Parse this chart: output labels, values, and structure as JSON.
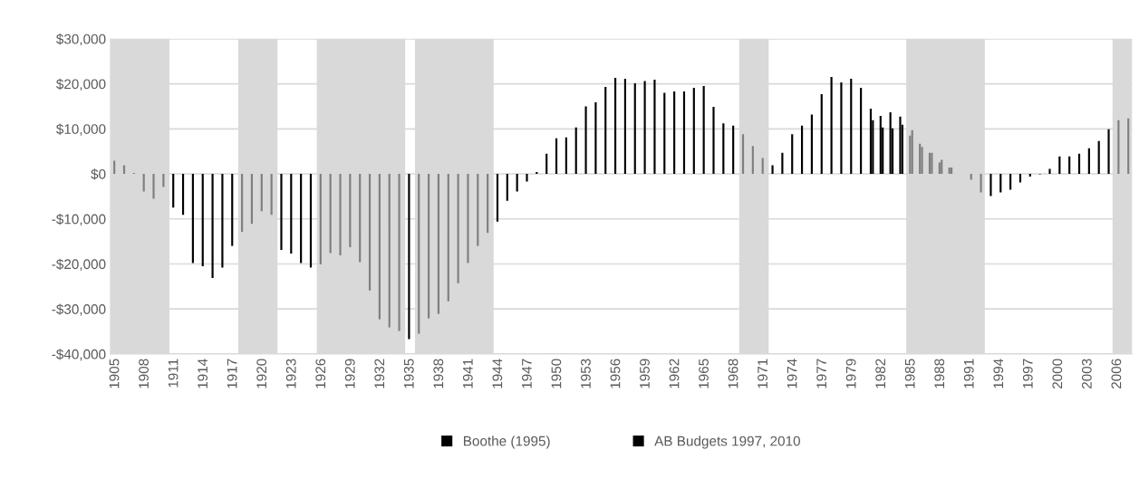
{
  "chart_data": {
    "type": "bar",
    "categories": [
      "1905",
      null,
      null,
      "1908",
      null,
      null,
      "1911",
      null,
      null,
      "1914",
      null,
      null,
      "1917",
      null,
      null,
      "1920",
      null,
      null,
      "1923",
      null,
      null,
      "1926",
      null,
      null,
      "1929",
      null,
      null,
      "1932",
      null,
      null,
      "1935",
      null,
      null,
      "1938",
      null,
      null,
      "1941",
      null,
      null,
      "1944",
      null,
      null,
      "1947",
      null,
      null,
      "1950",
      null,
      null,
      "1953",
      null,
      null,
      "1956",
      null,
      null,
      "1959",
      null,
      null,
      "1962",
      null,
      null,
      "1965",
      null,
      null,
      "1968",
      null,
      null,
      "1971",
      null,
      null,
      "1974",
      null,
      null,
      "1977",
      null,
      null,
      "1979",
      null,
      null,
      "1982",
      null,
      null,
      "1985",
      null,
      null,
      "1988",
      null,
      null,
      "1991",
      null,
      null,
      "1994",
      null,
      null,
      "1997",
      null,
      null,
      "2000",
      null,
      null,
      "2003",
      null,
      null,
      "2006",
      null
    ],
    "series": [
      {
        "name": "Boothe (1995)",
        "color": "#000000",
        "values": [
          2900,
          1900,
          200,
          -3900,
          -5500,
          -2900,
          -7500,
          -9100,
          -19800,
          -20500,
          -23100,
          -20800,
          -16000,
          -12900,
          -11100,
          -8300,
          -9100,
          -16900,
          -17700,
          -19800,
          -20800,
          -20100,
          -17600,
          -18100,
          -16300,
          -19600,
          -25900,
          -32300,
          -34100,
          -34900,
          -36700,
          -35500,
          -32100,
          -31100,
          -28300,
          -24300,
          -19800,
          -16000,
          -13100,
          -10600,
          -6000,
          -3900,
          -1700,
          400,
          4500,
          7900,
          8100,
          10300,
          15000,
          15900,
          19300,
          21300,
          21100,
          20100,
          20600,
          20900,
          18000,
          18300,
          18300,
          19100,
          19500,
          14900,
          11200,
          10700,
          8800,
          6200,
          3500,
          1900,
          4700,
          8800,
          10700,
          13200,
          17700,
          21500,
          20300,
          21100,
          19100,
          14500,
          12900,
          13700,
          12700,
          8500,
          6700,
          4700,
          2500,
          1400,
          null,
          null,
          null,
          null,
          null,
          null,
          null,
          null,
          null,
          null,
          null,
          null,
          null,
          null,
          null,
          null,
          null,
          null
        ],
        "colors": [
          "#7f7f7f",
          "#7f7f7f",
          "#7f7f7f",
          "#7f7f7f",
          "#7f7f7f",
          "#7f7f7f",
          "#000000",
          "#000000",
          "#000000",
          "#000000",
          "#000000",
          "#000000",
          "#000000",
          "#7f7f7f",
          "#7f7f7f",
          "#7f7f7f",
          "#7f7f7f",
          "#000000",
          "#000000",
          "#000000",
          "#000000",
          "#7f7f7f",
          "#7f7f7f",
          "#7f7f7f",
          "#7f7f7f",
          "#7f7f7f",
          "#7f7f7f",
          "#7f7f7f",
          "#7f7f7f",
          "#7f7f7f",
          "#000000",
          "#7f7f7f",
          "#7f7f7f",
          "#7f7f7f",
          "#7f7f7f",
          "#7f7f7f",
          "#7f7f7f",
          "#7f7f7f",
          "#7f7f7f",
          "#000000",
          "#000000",
          "#000000",
          "#000000",
          "#000000",
          "#000000",
          "#000000",
          "#000000",
          "#000000",
          "#000000",
          "#000000",
          "#000000",
          "#000000",
          "#000000",
          "#000000",
          "#000000",
          "#000000",
          "#000000",
          "#000000",
          "#000000",
          "#000000",
          "#000000",
          "#000000",
          "#000000",
          "#000000",
          "#7f7f7f",
          "#7f7f7f",
          "#7f7f7f",
          "#000000",
          "#000000",
          "#000000",
          "#000000",
          "#000000",
          "#000000",
          "#000000",
          "#000000",
          "#000000",
          "#000000",
          "#000000",
          "#000000",
          "#000000",
          "#000000",
          "#7f7f7f",
          "#7f7f7f",
          "#7f7f7f",
          "#7f7f7f",
          "#7f7f7f",
          null,
          null,
          null,
          null,
          null,
          null,
          null,
          null,
          null,
          null,
          null,
          null,
          null,
          null,
          null,
          null,
          null,
          null
        ]
      },
      {
        "name": "AB Budgets 1997, 2010",
        "color": "#000000",
        "values": [
          null,
          null,
          null,
          null,
          null,
          null,
          null,
          null,
          null,
          null,
          null,
          null,
          null,
          null,
          null,
          null,
          null,
          null,
          null,
          null,
          null,
          null,
          null,
          null,
          null,
          null,
          null,
          null,
          null,
          null,
          null,
          null,
          null,
          null,
          null,
          null,
          null,
          null,
          null,
          null,
          null,
          null,
          null,
          null,
          null,
          null,
          null,
          null,
          null,
          null,
          null,
          null,
          null,
          null,
          null,
          null,
          null,
          null,
          null,
          null,
          null,
          null,
          null,
          null,
          null,
          null,
          null,
          null,
          null,
          null,
          null,
          null,
          null,
          null,
          null,
          null,
          null,
          11900,
          10300,
          10100,
          10900,
          9700,
          6000,
          4700,
          3100,
          1400,
          null,
          -1300,
          -4100,
          -4900,
          -4100,
          -3500,
          -1900,
          -600,
          -100,
          1100,
          3900,
          3900,
          4500,
          5700,
          7300,
          9900,
          11900,
          12300
        ],
        "colors": [
          null,
          null,
          null,
          null,
          null,
          null,
          null,
          null,
          null,
          null,
          null,
          null,
          null,
          null,
          null,
          null,
          null,
          null,
          null,
          null,
          null,
          null,
          null,
          null,
          null,
          null,
          null,
          null,
          null,
          null,
          null,
          null,
          null,
          null,
          null,
          null,
          null,
          null,
          null,
          null,
          null,
          null,
          null,
          null,
          null,
          null,
          null,
          null,
          null,
          null,
          null,
          null,
          null,
          null,
          null,
          null,
          null,
          null,
          null,
          null,
          null,
          null,
          null,
          null,
          null,
          null,
          null,
          null,
          null,
          null,
          null,
          null,
          null,
          null,
          null,
          null,
          null,
          "#000000",
          "#000000",
          "#000000",
          "#000000",
          "#7f7f7f",
          "#7f7f7f",
          "#7f7f7f",
          "#7f7f7f",
          "#7f7f7f",
          null,
          "#7f7f7f",
          "#7f7f7f",
          "#000000",
          "#000000",
          "#000000",
          "#000000",
          "#000000",
          "#000000",
          "#000000",
          "#000000",
          "#000000",
          "#000000",
          "#000000",
          "#000000",
          "#000000",
          "#7f7f7f",
          "#7f7f7f"
        ]
      }
    ],
    "ylim": [
      -40000,
      30000
    ],
    "yticks": [
      {
        "value": -40000,
        "label": "-$40,000"
      },
      {
        "value": -30000,
        "label": "-$30,000"
      },
      {
        "value": -20000,
        "label": "-$20,000"
      },
      {
        "value": -10000,
        "label": "-$10,000"
      },
      {
        "value": 0,
        "label": "$0"
      },
      {
        "value": 10000,
        "label": "$10,000"
      },
      {
        "value": 20000,
        "label": "$20,000"
      },
      {
        "value": 30000,
        "label": "$30,000"
      }
    ],
    "grid": "y",
    "legend": "bottom"
  }
}
